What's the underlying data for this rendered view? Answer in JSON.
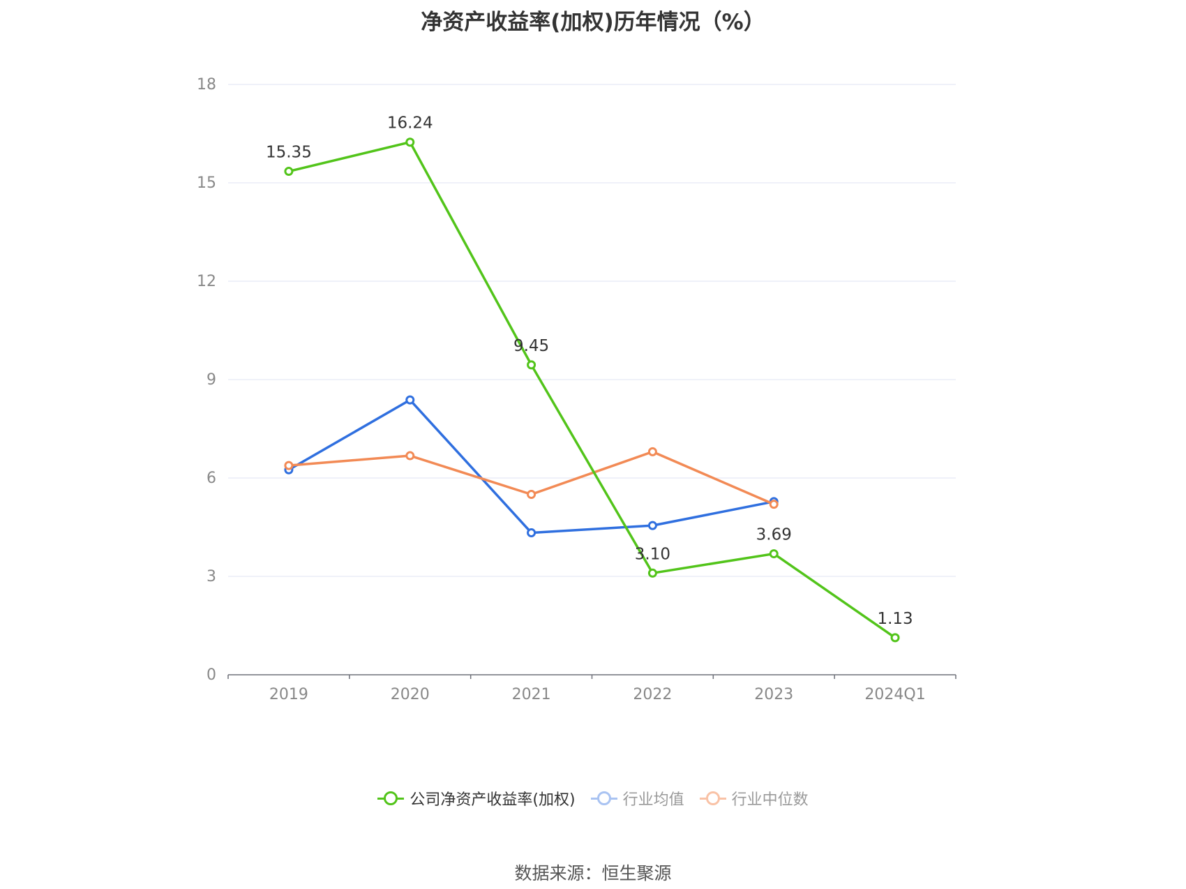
{
  "chart_data": {
    "type": "line",
    "title": "净资产收益率(加权)历年情况（%）",
    "categories": [
      "2019",
      "2020",
      "2021",
      "2022",
      "2023",
      "2024Q1"
    ],
    "ylim": [
      0,
      18
    ],
    "yticks": [
      0,
      3,
      6,
      9,
      12,
      15,
      18
    ],
    "grid": true,
    "legend_position": "bottom",
    "series": [
      {
        "name": "公司净资产收益率(加权)",
        "color": "#52c41a",
        "values": [
          15.35,
          16.24,
          9.45,
          3.1,
          3.69,
          1.13
        ],
        "labels": [
          "15.35",
          "16.24",
          "9.45",
          "3.10",
          "3.69",
          "1.13"
        ]
      },
      {
        "name": "行业均值",
        "color": "#2f6fdf",
        "values": [
          6.25,
          8.38,
          4.33,
          4.55,
          5.28,
          null
        ]
      },
      {
        "name": "行业中位数",
        "color": "#f28a55",
        "values": [
          6.38,
          6.68,
          5.5,
          6.8,
          5.2,
          null
        ]
      }
    ],
    "source": "数据来源：恒生聚源"
  }
}
